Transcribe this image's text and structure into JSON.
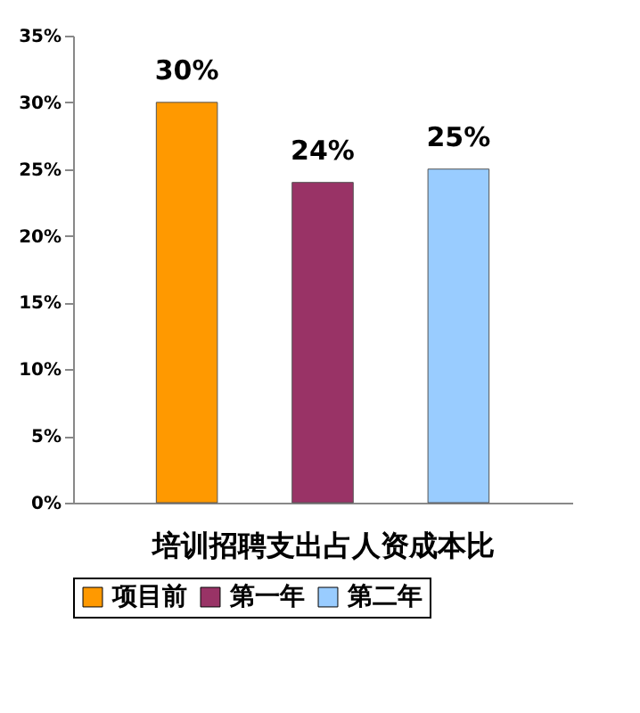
{
  "chart_data": {
    "type": "bar",
    "xlabel": "培训招聘支出占人资成本比",
    "categories": [
      null
    ],
    "series": [
      {
        "name": "项目前",
        "color": "#ff9900",
        "values": [
          30
        ],
        "value_labels": [
          "30%"
        ]
      },
      {
        "name": "第一年",
        "color": "#993366",
        "values": [
          24
        ],
        "value_labels": [
          "24%"
        ]
      },
      {
        "name": "第二年",
        "color": "#99ccff",
        "values": [
          25
        ],
        "value_labels": [
          "25%"
        ]
      }
    ],
    "ylim": [
      0,
      35
    ],
    "yticks": [
      {
        "value": 0,
        "label": "0%"
      },
      {
        "value": 5,
        "label": "5%"
      },
      {
        "value": 10,
        "label": "10%"
      },
      {
        "value": 15,
        "label": "15%"
      },
      {
        "value": 20,
        "label": "20%"
      },
      {
        "value": 25,
        "label": "25%"
      },
      {
        "value": 30,
        "label": "30%"
      },
      {
        "value": 35,
        "label": "35%"
      }
    ],
    "grid": false,
    "legend": "bottom"
  }
}
